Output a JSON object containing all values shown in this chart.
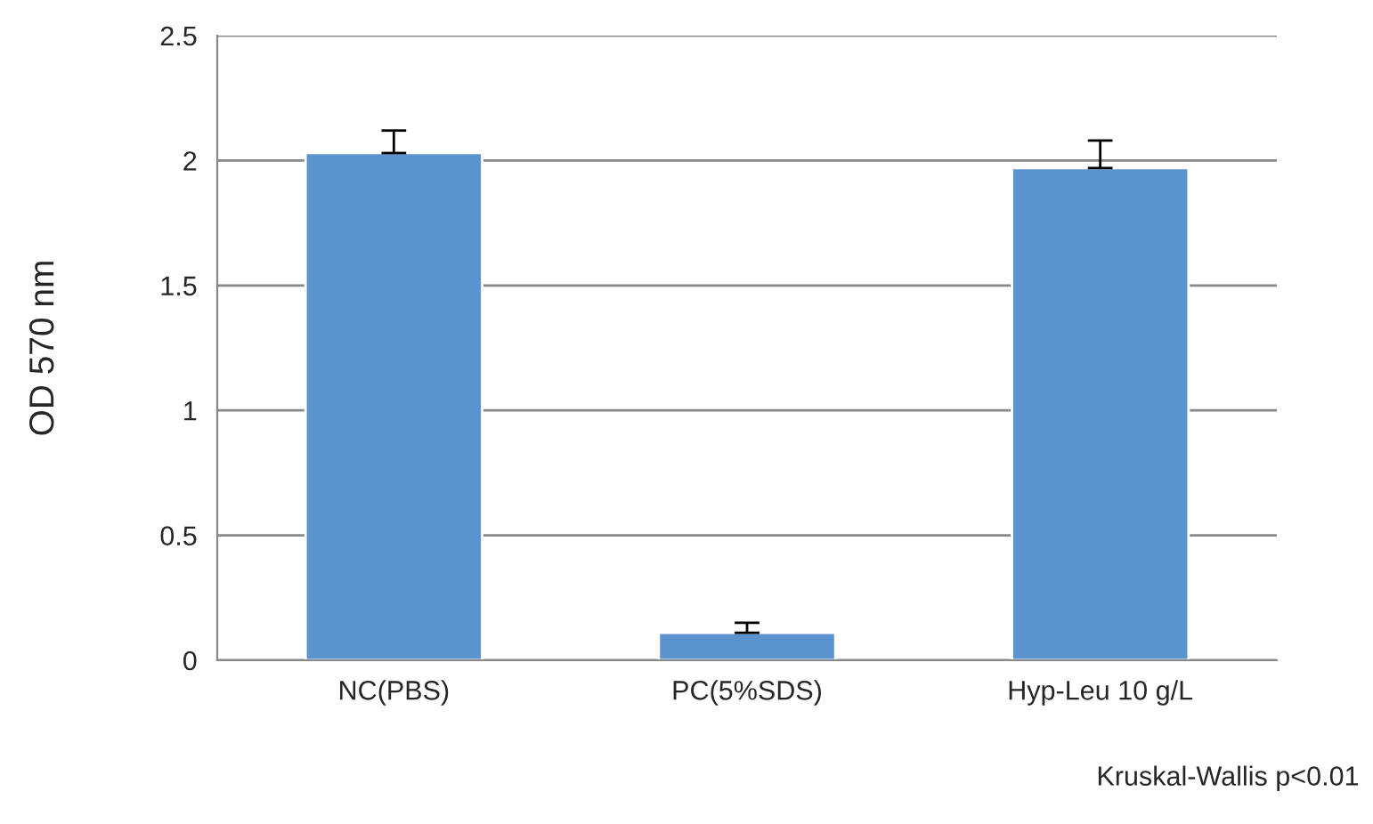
{
  "chart_data": {
    "type": "bar",
    "ylabel": "OD 570 nm",
    "categories": [
      "NC(PBS)",
      "PC(5%SDS)",
      "Hyp-Leu 10 g/L"
    ],
    "values": [
      2.03,
      0.11,
      1.97
    ],
    "errors": [
      [
        2.03,
        2.12
      ],
      [
        0.11,
        0.15
      ],
      [
        1.97,
        2.08
      ]
    ],
    "color": "#5b93cf",
    "ylim": [
      0,
      2.5
    ],
    "yticks": [
      0,
      0.5,
      1,
      1.5,
      2,
      2.5
    ],
    "grid": "y",
    "annotations": [
      "Kruskal-Wallis p<0.01"
    ]
  }
}
